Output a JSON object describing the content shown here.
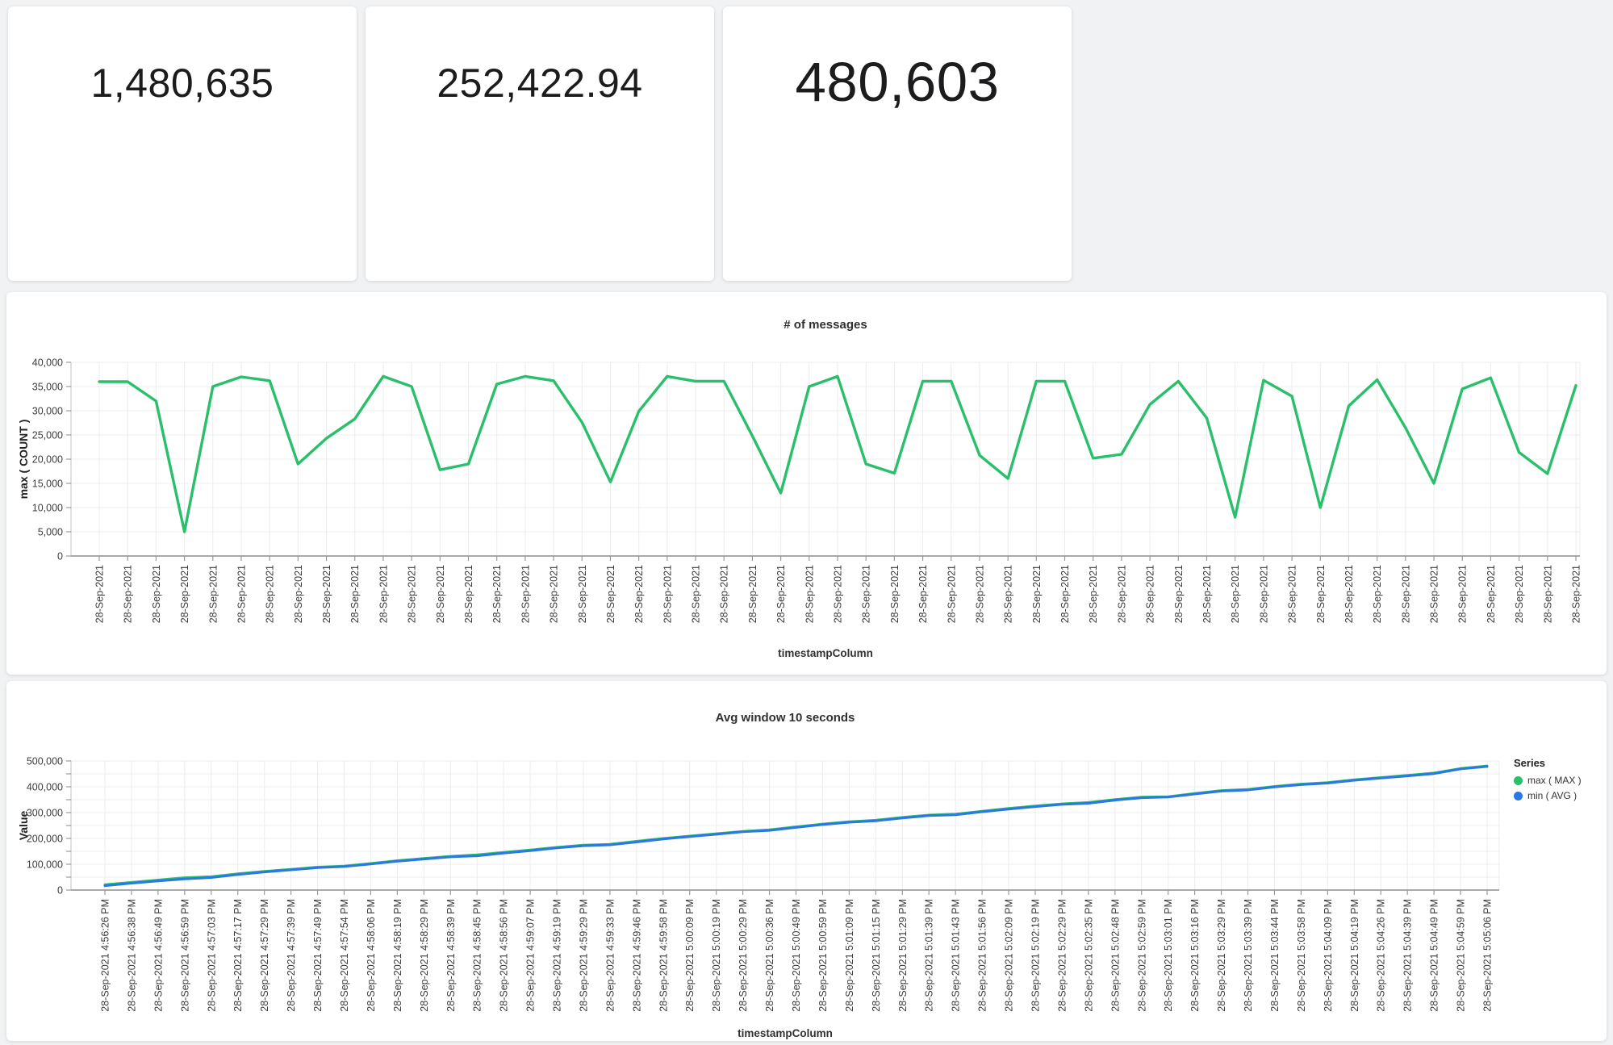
{
  "cards": [
    {
      "value": "1,480,635"
    },
    {
      "value": "252,422.94"
    },
    {
      "value": "480,603"
    }
  ],
  "chart_data": [
    {
      "type": "line",
      "title": "# of messages",
      "xlabel": "timestampColumn",
      "ylabel": "max ( COUNT )",
      "ylim": [
        0,
        40000
      ],
      "ytick_step": 5000,
      "ylabel_every": 5000,
      "grid": true,
      "legend": null,
      "categories": [
        "28-Sep-2021",
        "28-Sep-2021",
        "28-Sep-2021",
        "28-Sep-2021",
        "28-Sep-2021",
        "28-Sep-2021",
        "28-Sep-2021",
        "28-Sep-2021",
        "28-Sep-2021",
        "28-Sep-2021",
        "28-Sep-2021",
        "28-Sep-2021",
        "28-Sep-2021",
        "28-Sep-2021",
        "28-Sep-2021",
        "28-Sep-2021",
        "28-Sep-2021",
        "28-Sep-2021",
        "28-Sep-2021",
        "28-Sep-2021",
        "28-Sep-2021",
        "28-Sep-2021",
        "28-Sep-2021",
        "28-Sep-2021",
        "28-Sep-2021",
        "28-Sep-2021",
        "28-Sep-2021",
        "28-Sep-2021",
        "28-Sep-2021",
        "28-Sep-2021",
        "28-Sep-2021",
        "28-Sep-2021",
        "28-Sep-2021",
        "28-Sep-2021",
        "28-Sep-2021",
        "28-Sep-2021",
        "28-Sep-2021",
        "28-Sep-2021",
        "28-Sep-2021",
        "28-Sep-2021",
        "28-Sep-2021",
        "28-Sep-2021",
        "28-Sep-2021",
        "28-Sep-2021",
        "28-Sep-2021",
        "28-Sep-2021",
        "28-Sep-2021",
        "28-Sep-2021",
        "28-Sep-2021",
        "28-Sep-2021",
        "28-Sep-2021",
        "28-Sep-2021",
        "28-Sep-2021"
      ],
      "series": [
        {
          "name": "max ( COUNT )",
          "color": "#2abf6a",
          "values": [
            36000,
            36000,
            32000,
            5000,
            35000,
            37000,
            36200,
            19000,
            24300,
            28300,
            37100,
            35000,
            17800,
            19000,
            35500,
            37100,
            36200,
            27600,
            15300,
            29900,
            37100,
            36100,
            36100,
            24800,
            13000,
            35000,
            37100,
            19000,
            17100,
            36100,
            36100,
            20800,
            16000,
            36100,
            36100,
            20200,
            21000,
            31300,
            36100,
            28500,
            8000,
            36300,
            33000,
            10000,
            31000,
            36400,
            26500,
            15000,
            34500,
            36800,
            21400,
            17000,
            35200
          ]
        }
      ]
    },
    {
      "type": "line",
      "title": "Avg window 10 seconds",
      "xlabel": "timestampColumn",
      "ylabel": "Value",
      "ylim": [
        0,
        500000
      ],
      "ytick_step": 50000,
      "ylabel_every": 100000,
      "grid": true,
      "legend": {
        "title": "Series",
        "position": "right"
      },
      "categories": [
        "28-Sep-2021 4:56:26 PM",
        "28-Sep-2021 4:56:38 PM",
        "28-Sep-2021 4:56:49 PM",
        "28-Sep-2021 4:56:59 PM",
        "28-Sep-2021 4:57:03 PM",
        "28-Sep-2021 4:57:17 PM",
        "28-Sep-2021 4:57:29 PM",
        "28-Sep-2021 4:57:39 PM",
        "28-Sep-2021 4:57:49 PM",
        "28-Sep-2021 4:57:54 PM",
        "28-Sep-2021 4:58:06 PM",
        "28-Sep-2021 4:58:19 PM",
        "28-Sep-2021 4:58:29 PM",
        "28-Sep-2021 4:58:39 PM",
        "28-Sep-2021 4:58:45 PM",
        "28-Sep-2021 4:58:56 PM",
        "28-Sep-2021 4:59:07 PM",
        "28-Sep-2021 4:59:19 PM",
        "28-Sep-2021 4:59:29 PM",
        "28-Sep-2021 4:59:33 PM",
        "28-Sep-2021 4:59:46 PM",
        "28-Sep-2021 4:59:58 PM",
        "28-Sep-2021 5:00:09 PM",
        "28-Sep-2021 5:00:19 PM",
        "28-Sep-2021 5:00:29 PM",
        "28-Sep-2021 5:00:36 PM",
        "28-Sep-2021 5:00:49 PM",
        "28-Sep-2021 5:00:59 PM",
        "28-Sep-2021 5:01:09 PM",
        "28-Sep-2021 5:01:15 PM",
        "28-Sep-2021 5:01:29 PM",
        "28-Sep-2021 5:01:39 PM",
        "28-Sep-2021 5:01:43 PM",
        "28-Sep-2021 5:01:56 PM",
        "28-Sep-2021 5:02:09 PM",
        "28-Sep-2021 5:02:19 PM",
        "28-Sep-2021 5:02:29 PM",
        "28-Sep-2021 5:02:35 PM",
        "28-Sep-2021 5:02:48 PM",
        "28-Sep-2021 5:02:59 PM",
        "28-Sep-2021 5:03:01 PM",
        "28-Sep-2021 5:03:16 PM",
        "28-Sep-2021 5:03:29 PM",
        "28-Sep-2021 5:03:39 PM",
        "28-Sep-2021 5:03:44 PM",
        "28-Sep-2021 5:03:58 PM",
        "28-Sep-2021 5:04:09 PM",
        "28-Sep-2021 5:04:19 PM",
        "28-Sep-2021 5:04:26 PM",
        "28-Sep-2021 5:04:39 PM",
        "28-Sep-2021 5:04:49 PM",
        "28-Sep-2021 5:04:59 PM",
        "28-Sep-2021 5:05:06 PM"
      ],
      "series": [
        {
          "name": "max ( MAX )",
          "color": "#2abf6a",
          "values": [
            21000,
            30000,
            39000,
            48000,
            52000,
            63000,
            72500,
            80500,
            89000,
            93000,
            103000,
            114000,
            122500,
            131000,
            136500,
            146000,
            155500,
            165500,
            174000,
            177500,
            189000,
            200000,
            209500,
            218500,
            227500,
            233500,
            245000,
            256000,
            265000,
            270500,
            281500,
            290500,
            294000,
            305500,
            316500,
            325500,
            334000,
            339500,
            350500,
            360000,
            362000,
            374500,
            385500,
            390000,
            401500,
            410500,
            416500,
            427500,
            436000,
            444500,
            453500,
            471000,
            481000
          ]
        },
        {
          "name": "min ( AVG )",
          "color": "#2a78e4",
          "values": [
            17000,
            26500,
            35000,
            43000,
            48500,
            60000,
            70000,
            78000,
            86500,
            91000,
            101000,
            111500,
            120000,
            128500,
            132500,
            143000,
            152500,
            163000,
            171500,
            175000,
            186000,
            197500,
            207000,
            216000,
            225500,
            231000,
            242500,
            253500,
            262500,
            268000,
            279000,
            288000,
            291500,
            303000,
            313500,
            323000,
            331500,
            336000,
            348000,
            357500,
            360000,
            372000,
            383000,
            387500,
            399000,
            408000,
            414000,
            425000,
            433500,
            442000,
            451000,
            469000,
            478500
          ]
        }
      ]
    }
  ]
}
